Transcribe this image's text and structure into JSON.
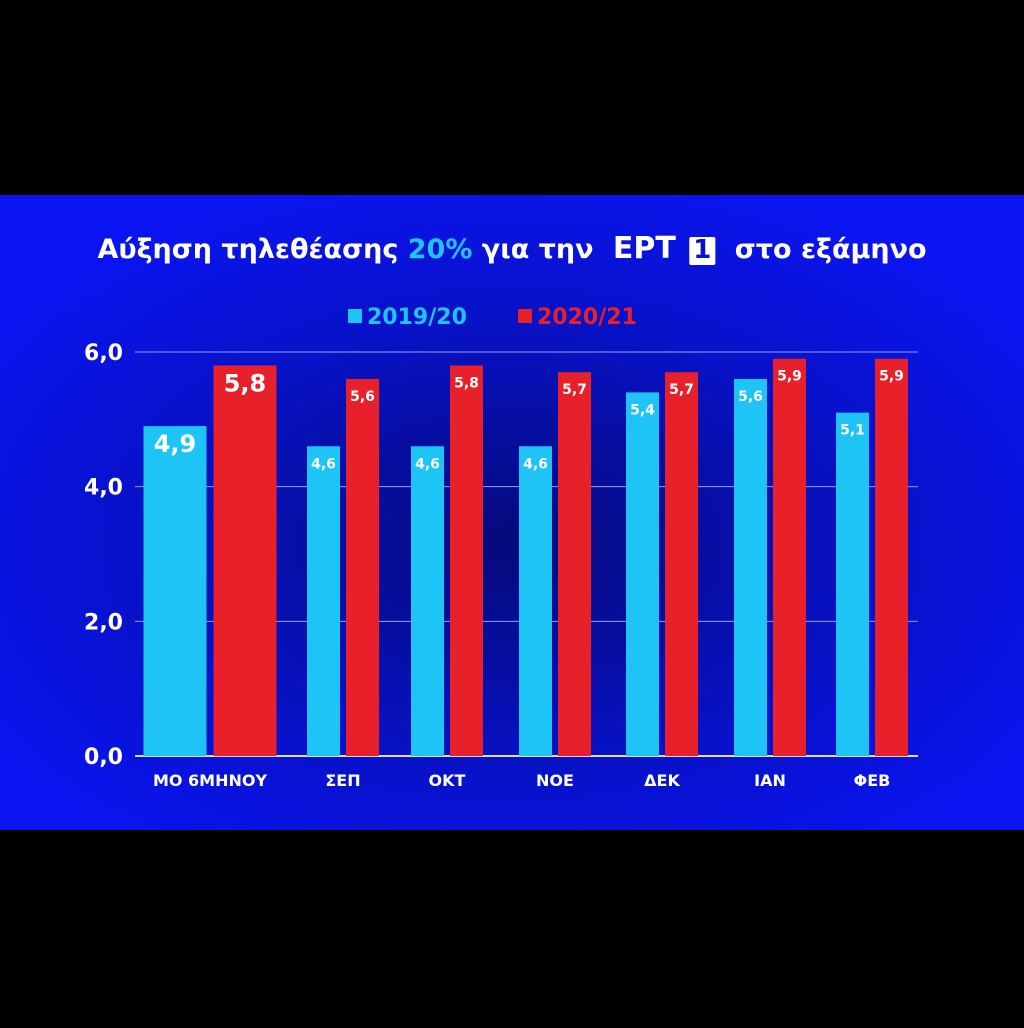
{
  "chart_data": {
    "type": "bar",
    "title": [
      "Αύξηση τηλεθέασης",
      "20%",
      "για την",
      "ΕΡΤ",
      "1",
      "στο εξάμηνο"
    ],
    "categories": [
      "ΜΟ 6ΜΗΝΟΥ",
      "ΣΕΠ",
      "ΟΚΤ",
      "ΝΟΕ",
      "ΔΕΚ",
      "ΙΑΝ",
      "ΦΕΒ"
    ],
    "series": [
      {
        "name": "2019/20",
        "color": "#1ec4f6",
        "values": [
          4.9,
          4.6,
          4.6,
          4.6,
          5.4,
          5.6,
          5.1
        ],
        "value_labels": [
          "4,9",
          "4,6",
          "4,6",
          "4,6",
          "5,4",
          "5,6",
          "5,1"
        ]
      },
      {
        "name": "2020/21",
        "color": "#e8202a",
        "values": [
          5.8,
          5.6,
          5.8,
          5.7,
          5.7,
          5.9,
          5.9
        ],
        "value_labels": [
          "5,8",
          "5,6",
          "5,8",
          "5,7",
          "5,7",
          "5,9",
          "5,9"
        ]
      }
    ],
    "ylim": [
      0,
      6
    ],
    "yticks": [
      {
        "value": 0,
        "label": "0,0"
      },
      {
        "value": 2,
        "label": "2,0"
      },
      {
        "value": 4,
        "label": "4,0"
      },
      {
        "value": 6,
        "label": "6,0"
      }
    ],
    "grid": true
  }
}
